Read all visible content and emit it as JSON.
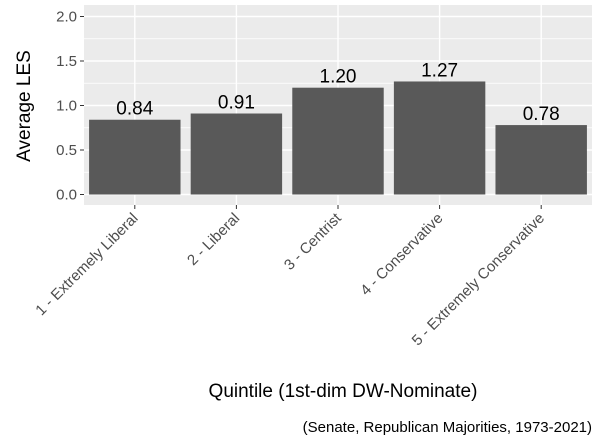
{
  "chart_data": {
    "type": "bar",
    "categories": [
      "1 - Extremely Liberal",
      "2 - Liberal",
      "3 - Centrist",
      "4 - Conservative",
      "5 - Extremely Conservative"
    ],
    "values": [
      0.84,
      0.91,
      1.2,
      1.27,
      0.78
    ],
    "data_labels": [
      "0.84",
      "0.91",
      "1.20",
      "1.27",
      "0.78"
    ],
    "yticks": [
      "0.0",
      "0.5",
      "1.0",
      "1.5",
      "2.0"
    ],
    "ytick_values": [
      0,
      0.5,
      1.0,
      1.5,
      2.0
    ],
    "ylim": [
      0,
      2.0
    ],
    "xlabel": "Quintile (1st-dim DW-Nominate)",
    "ylabel": "Average LES",
    "caption": "(Senate, Republican Majorities, 1973-2021)",
    "grid": true,
    "colors": {
      "bar": "#595959",
      "panel": "#ebebeb",
      "grid_major": "#ffffff"
    }
  }
}
